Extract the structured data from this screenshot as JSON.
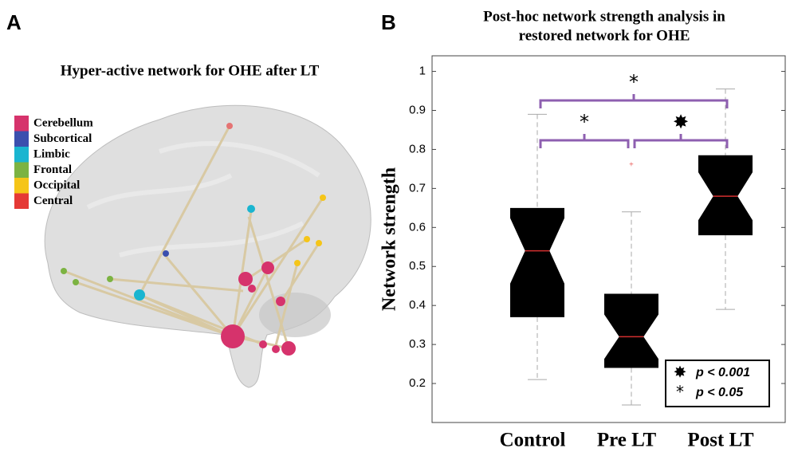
{
  "panel_a": {
    "label": "A",
    "title": "Hyper-active network for OHE after LT",
    "legend": [
      {
        "name": "Cerebellum",
        "color": "#d6336c"
      },
      {
        "name": "Subcortical",
        "color": "#3b4fae"
      },
      {
        "name": "Limbic",
        "color": "#1ab5d0"
      },
      {
        "name": "Frontal",
        "color": "#7cb342"
      },
      {
        "name": "Occipital",
        "color": "#f5c518"
      },
      {
        "name": "Central",
        "color": "#e53935"
      }
    ]
  },
  "chart_data": {
    "type": "box",
    "panel_label": "B",
    "title": [
      "Post-hoc network strength analysis in",
      "restored network for OHE"
    ],
    "y_label": "Network strength",
    "categories": [
      "Control",
      "Pre  LT",
      "Post  LT"
    ],
    "boxes": [
      {
        "whislo": 0.21,
        "q1": 0.37,
        "median": 0.54,
        "q3": 0.65,
        "whishi": 0.89,
        "fliers": []
      },
      {
        "whislo": 0.145,
        "q1": 0.24,
        "median": 0.32,
        "q3": 0.43,
        "whishi": 0.64,
        "fliers": [
          0.76
        ]
      },
      {
        "whislo": 0.39,
        "q1": 0.58,
        "median": 0.68,
        "q3": 0.785,
        "whishi": 0.955,
        "fliers": []
      }
    ],
    "box_color": "#000000",
    "median_color": "#d32f2f",
    "whisker_color": "#aaaaaa",
    "bracket_color": "#8e5fb0",
    "ylim": [
      0.1,
      1.04
    ],
    "yticks": [
      0.2,
      0.3,
      0.4,
      0.5,
      0.6,
      0.7,
      0.8,
      0.9,
      1
    ],
    "significance": [
      "*",
      "✸",
      "*"
    ],
    "legend": [
      {
        "symbol": "✸",
        "text": "p < 0.001"
      },
      {
        "symbol": "*",
        "text": "p < 0.05"
      }
    ]
  }
}
